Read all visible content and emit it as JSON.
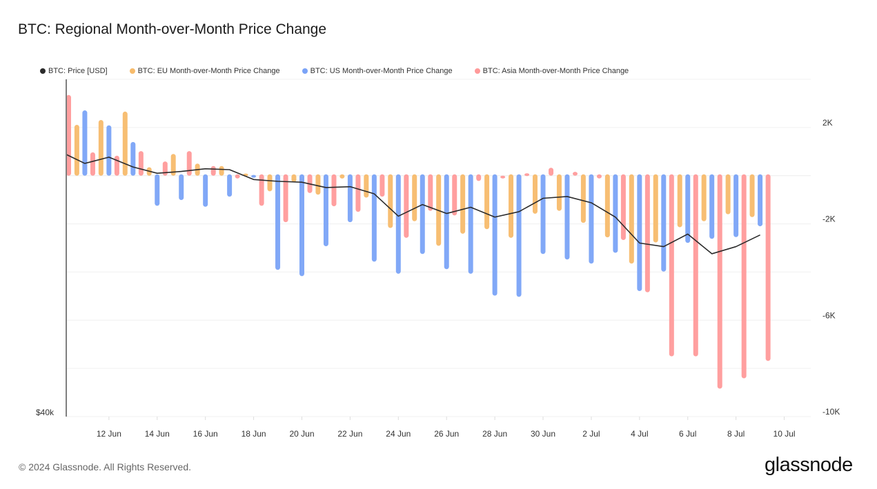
{
  "header": {
    "title": "BTC: Regional Month-over-Month Price Change"
  },
  "footer": {
    "copyright": "© 2024 Glassnode. All Rights Reserved.",
    "brand": "glassnode"
  },
  "colors": {
    "price": "#2b2b2b",
    "eu": "#f7bb6b",
    "us": "#7aa3f7",
    "asia": "#ff9a9a"
  },
  "chart_data": {
    "type": "bar+line",
    "title": "BTC: Regional Month-over-Month Price Change",
    "legend_position": "top-left",
    "legend": [
      "BTC: Price [USD]",
      "BTC: EU Month-over-Month Price Change",
      "BTC: US Month-over-Month Price Change",
      "BTC: Asia Month-over-Month Price Change"
    ],
    "dates": [
      "10 Jun",
      "11 Jun",
      "12 Jun",
      "13 Jun",
      "14 Jun",
      "15 Jun",
      "16 Jun",
      "17 Jun",
      "18 Jun",
      "19 Jun",
      "20 Jun",
      "21 Jun",
      "22 Jun",
      "23 Jun",
      "24 Jun",
      "25 Jun",
      "26 Jun",
      "27 Jun",
      "28 Jun",
      "29 Jun",
      "30 Jun",
      "1 Jul",
      "2 Jul",
      "3 Jul",
      "4 Jul",
      "5 Jul",
      "6 Jul",
      "7 Jul",
      "8 Jul",
      "9 Jul"
    ],
    "x_tick_labels": [
      "12 Jun",
      "14 Jun",
      "16 Jun",
      "18 Jun",
      "20 Jun",
      "22 Jun",
      "24 Jun",
      "26 Jun",
      "28 Jun",
      "30 Jun",
      "2 Jul",
      "4 Jul",
      "6 Jul",
      "8 Jul",
      "10 Jul"
    ],
    "x_tick_day_index": [
      2,
      4,
      6,
      8,
      10,
      12,
      14,
      16,
      18,
      20,
      22,
      24,
      26,
      28,
      30
    ],
    "x_range_days": [
      0.23,
      31.1
    ],
    "left_axis": {
      "label_bottom": "$40k",
      "ylim": [
        40000,
        77700
      ]
    },
    "right_axis": {
      "ticks": [
        2000,
        -2000,
        -6000,
        -10000
      ],
      "tick_labels": [
        "2K",
        "-2K",
        "-6K",
        "-10K"
      ],
      "ylim": [
        -10000,
        4000
      ]
    },
    "series": [
      {
        "name": "BTC: Price [USD]",
        "key": "price",
        "type": "line",
        "values": [
          69600,
          68300,
          69000,
          67900,
          67200,
          67400,
          67700,
          67600,
          66500,
          66300,
          66200,
          65600,
          65700,
          64900,
          62400,
          63700,
          62700,
          63400,
          62300,
          62900,
          64400,
          64600,
          63900,
          62300,
          59400,
          59000,
          60400,
          58200,
          59000,
          60300
        ]
      },
      {
        "name": "BTC: US Month-over-Month Price Change",
        "key": "us",
        "type": "bar",
        "values": [
          null,
          2710,
          2090,
          1400,
          -1250,
          -1010,
          -1290,
          -870,
          30,
          -3910,
          -4170,
          -2930,
          -1930,
          -3570,
          -4070,
          -3250,
          -3880,
          -4070,
          -4980,
          -5030,
          -3250,
          -3480,
          -3650,
          -3200,
          -4790,
          -3980,
          -2790,
          -2620,
          -2550,
          -2100
        ]
      },
      {
        "name": "BTC: Asia Month-over-Month Price Change",
        "key": "asia",
        "type": "bar",
        "values": [
          3350,
          970,
          830,
          1020,
          590,
          1020,
          400,
          -100,
          -1250,
          -1930,
          -720,
          -1270,
          -1500,
          -870,
          -2580,
          -1460,
          -1650,
          -220,
          0,
          100,
          330,
          160,
          -100,
          -2670,
          -4840,
          -7500,
          -7500,
          -8840,
          -8410,
          -7690
        ]
      },
      {
        "name": "BTC: EU Month-over-Month Price Change",
        "key": "eu",
        "type": "bar",
        "values": [
          2110,
          2310,
          2660,
          350,
          900,
          500,
          400,
          90,
          -650,
          -270,
          -790,
          -120,
          -910,
          -2170,
          -1890,
          -2910,
          -2410,
          -2220,
          -2580,
          -1580,
          -1460,
          -1960,
          -2560,
          -3650,
          -2770,
          -2140,
          -1890,
          -1600,
          -1720,
          null
        ]
      }
    ]
  }
}
